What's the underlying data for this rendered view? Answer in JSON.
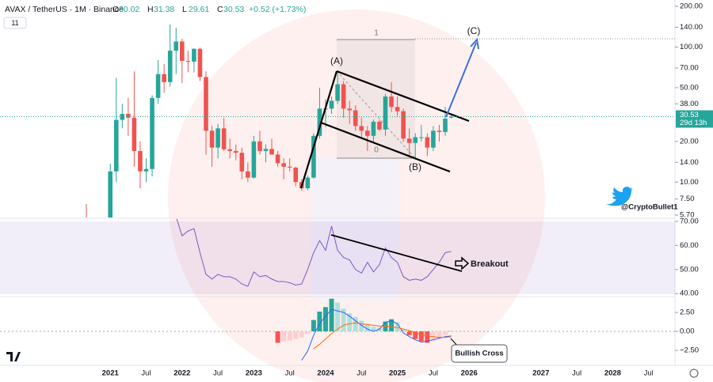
{
  "chart_data": {
    "type": "candlestick",
    "symbol": "AVAX / TetherUS · 1M · Binance",
    "ohlc_labels": [
      "O",
      "H",
      "L",
      "C"
    ],
    "change": "+0.52 (+1.73%)",
    "indicator_count": "11",
    "countdown": "29d 13h",
    "watermark": "@CryptoBullet1",
    "annotations": {
      "a": "(A)",
      "b": "(B)",
      "c": "(C)",
      "fib_top": "1",
      "fib_bottom": "0",
      "breakout": "Breakout",
      "bullish_cross": "Bullish Cross"
    },
    "log_scale": true,
    "up_color": "#26a69a",
    "down_color": "#ef5350",
    "ylim": [
      5.47,
      223
    ],
    "yticks": [
      {
        "value": 200,
        "label": "200.00"
      },
      {
        "value": 140,
        "label": "140.00"
      },
      {
        "value": 100,
        "label": "100.00"
      },
      {
        "value": 70,
        "label": "70.00"
      },
      {
        "value": 50,
        "label": "50.00"
      },
      {
        "value": 38,
        "label": "38.00"
      },
      {
        "value": 20,
        "label": "20.00"
      },
      {
        "value": 14,
        "label": "14.00"
      },
      {
        "value": 10,
        "label": "10.00"
      },
      {
        "value": 7.5,
        "label": "7.50"
      },
      {
        "value": 5.7,
        "label": "5.70"
      }
    ],
    "xticks": [
      "2021",
      "Jul",
      "2022",
      "Jul",
      "2023",
      "Jul",
      "2024",
      "Jul",
      "2025",
      "Jul",
      "2026",
      "2027",
      "Jul",
      "2028",
      "Jul"
    ],
    "candles": [
      [
        5.0,
        6.9,
        3.0,
        4.5
      ],
      [
        4.5,
        4.8,
        3.0,
        3.3
      ],
      [
        3.3,
        4.0,
        3.0,
        3.6
      ],
      [
        3.6,
        3.8,
        2.8,
        3.5
      ],
      [
        3.5,
        13.7,
        3.3,
        12.0
      ],
      [
        12.0,
        59.0,
        10.0,
        28.9
      ],
      [
        28.9,
        38.0,
        25.0,
        32.0
      ],
      [
        32.0,
        42.0,
        22.0,
        30.0
      ],
      [
        30.0,
        66.0,
        13.0,
        17.0
      ],
      [
        17.0,
        20.0,
        9.0,
        12.0
      ],
      [
        12.0,
        15.0,
        10.0,
        12.5
      ],
      [
        12.5,
        44.0,
        11.0,
        42.0
      ],
      [
        42.0,
        80.0,
        38.0,
        63.0
      ],
      [
        63.0,
        75.0,
        46.0,
        55.0
      ],
      [
        55.0,
        147.0,
        51.0,
        94.0
      ],
      [
        94.0,
        139.0,
        63.0,
        110.0
      ],
      [
        110.0,
        115.0,
        54.0,
        79.0
      ],
      [
        79.0,
        94.0,
        65.0,
        78.0
      ],
      [
        78.0,
        98.0,
        65.0,
        97.0
      ],
      [
        97.0,
        99.0,
        56.0,
        60.0
      ],
      [
        60.0,
        66.0,
        16.0,
        24.0
      ],
      [
        24.0,
        26.0,
        13.0,
        18.0
      ],
      [
        18.0,
        27.0,
        15.0,
        25.0
      ],
      [
        25.0,
        30.0,
        17.0,
        17.5
      ],
      [
        17.5,
        21.0,
        15.0,
        17.0
      ],
      [
        17.0,
        19.0,
        14.5,
        16.5
      ],
      [
        16.5,
        18.0,
        10.5,
        12.0
      ],
      [
        12.0,
        14.0,
        10.0,
        10.8
      ],
      [
        10.8,
        22.0,
        10.6,
        20.0
      ],
      [
        20.0,
        24.0,
        16.0,
        17.0
      ],
      [
        17.0,
        19.0,
        14.0,
        17.6
      ],
      [
        17.6,
        21.0,
        16.0,
        16.0
      ],
      [
        16.0,
        17.0,
        13.0,
        13.8
      ],
      [
        13.8,
        15.0,
        10.5,
        13.0
      ],
      [
        13.0,
        15.0,
        12.0,
        12.8
      ],
      [
        12.8,
        13.0,
        9.3,
        10.0
      ],
      [
        10.0,
        10.5,
        8.6,
        9.0
      ],
      [
        9.0,
        11.2,
        8.7,
        10.8
      ],
      [
        10.8,
        23.0,
        10.6,
        22.0
      ],
      [
        22.0,
        50.0,
        21.0,
        35.0
      ],
      [
        35.0,
        41.0,
        25.6,
        35.0
      ],
      [
        35.0,
        43.0,
        32.0,
        40.0
      ],
      [
        40.0,
        65.0,
        38.0,
        53.0
      ],
      [
        53.0,
        56.0,
        30.0,
        35.0
      ],
      [
        35.0,
        40.0,
        27.0,
        34.0
      ],
      [
        34.0,
        37.0,
        24.0,
        26.0
      ],
      [
        26.0,
        30.0,
        21.0,
        24.0
      ],
      [
        24.0,
        26.0,
        17.0,
        22.0
      ],
      [
        22.0,
        29.0,
        20.0,
        28.0
      ],
      [
        28.0,
        29.0,
        24.0,
        24.5
      ],
      [
        24.5,
        45.0,
        22.0,
        43.0
      ],
      [
        43.0,
        55.0,
        33.0,
        36.0
      ],
      [
        36.0,
        43.0,
        31.0,
        33.5
      ],
      [
        33.5,
        35.0,
        20.0,
        21.0
      ],
      [
        21.0,
        25.0,
        15.5,
        19.5
      ],
      [
        19.5,
        23.0,
        14.6,
        21.5
      ],
      [
        21.5,
        26.5,
        20.0,
        21.5
      ],
      [
        21.5,
        23.0,
        15.6,
        18.0
      ],
      [
        18.0,
        26.0,
        17.0,
        24.0
      ],
      [
        24.0,
        26.5,
        20.0,
        23.5
      ],
      [
        23.5,
        36.0,
        22.0,
        29.5
      ],
      [
        30.02,
        31.38,
        29.61,
        30.53
      ]
    ],
    "rsi": {
      "ylim": [
        38.4,
        71.3
      ],
      "yticks": [
        {
          "value": 70,
          "label": "70.00"
        },
        {
          "value": 60,
          "label": "60.00"
        },
        {
          "value": 50,
          "label": "50.00"
        },
        {
          "value": 40,
          "label": "40.00"
        }
      ],
      "color": "#7e57c2",
      "values": [
        null,
        null,
        null,
        null,
        null,
        null,
        null,
        null,
        null,
        null,
        null,
        null,
        null,
        null,
        null,
        72,
        64,
        66,
        67,
        57,
        48,
        46,
        48,
        47,
        47,
        46,
        44,
        43,
        49,
        47,
        47.5,
        46,
        45,
        45,
        44.5,
        43.5,
        44,
        50,
        57,
        62,
        58,
        68,
        58,
        55,
        54,
        50,
        48.5,
        53,
        49,
        52,
        59,
        55,
        53,
        47,
        45.5,
        46,
        45.5,
        47,
        50,
        53,
        57,
        57.5
      ]
    },
    "macd": {
      "ylim": [
        -4.48,
        4.375
      ],
      "yticks": [
        {
          "value": 2.5,
          "label": "2.50"
        },
        {
          "value": 0,
          "label": "0.00"
        },
        {
          "value": -2.5,
          "label": "−2.50"
        }
      ],
      "macd_color": "#2962ff",
      "signal_color": "#ff6d00",
      "histogram": [
        null,
        null,
        null,
        null,
        null,
        null,
        null,
        null,
        null,
        null,
        null,
        null,
        null,
        null,
        null,
        null,
        null,
        null,
        null,
        null,
        null,
        null,
        null,
        null,
        null,
        null,
        null,
        null,
        null,
        null,
        null,
        null,
        -1.5,
        -1.3,
        -1.2,
        -1.0,
        -0.8,
        -0.3,
        1.5,
        2.6,
        3.2,
        4.3,
        3.8,
        3.0,
        2.4,
        1.9,
        1.4,
        1.0,
        0.6,
        0.5,
        1.3,
        1.6,
        1.2,
        0.2,
        -0.5,
        -1.0,
        -1.3,
        -1.5,
        -1.3,
        -0.9,
        -0.5,
        0.1
      ],
      "macd": [
        null,
        null,
        null,
        null,
        null,
        null,
        null,
        null,
        null,
        null,
        null,
        null,
        null,
        null,
        null,
        null,
        null,
        null,
        null,
        null,
        null,
        null,
        null,
        null,
        null,
        null,
        null,
        null,
        null,
        null,
        null,
        null,
        null,
        null,
        null,
        null,
        -3.8,
        -2.6,
        -0.5,
        1.0,
        2.0,
        2.9,
        2.7,
        2.5,
        2.0,
        1.4,
        0.8,
        0.3,
        0.0,
        0.3,
        1.2,
        1.4,
        1.0,
        -0.2,
        -0.7,
        -1.1,
        -1.4,
        -1.3,
        -1.1,
        -0.9,
        -0.7,
        -0.6
      ],
      "signal": [
        null,
        null,
        null,
        null,
        null,
        null,
        null,
        null,
        null,
        null,
        null,
        null,
        null,
        null,
        null,
        null,
        null,
        null,
        null,
        null,
        null,
        null,
        null,
        null,
        null,
        null,
        null,
        null,
        null,
        null,
        null,
        null,
        null,
        null,
        null,
        null,
        null,
        null,
        -2.3,
        -1.7,
        -1.0,
        -0.3,
        0.3,
        0.8,
        1.0,
        1.1,
        1.0,
        0.9,
        0.8,
        0.7,
        0.7,
        0.6,
        0.5,
        0.3,
        0.1,
        -0.2,
        -0.4,
        -0.6,
        -0.7,
        -0.8,
        -0.8,
        -0.7
      ]
    }
  }
}
